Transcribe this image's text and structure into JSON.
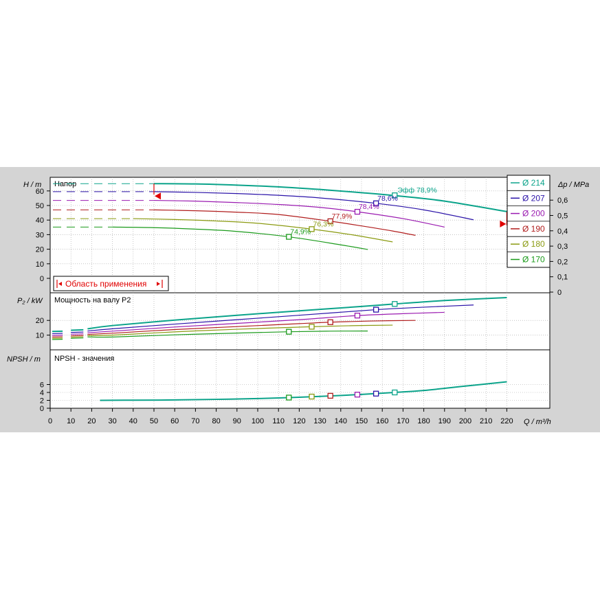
{
  "colors": {
    "background": "#d4d4d4",
    "plot": "#ffffff",
    "grid": "#a0a0a0",
    "marker_red": "#e00000"
  },
  "legend": {
    "items": [
      {
        "label": "Ø 214",
        "color": "#0aa38a"
      },
      {
        "label": "Ø 207",
        "color": "#2a12a8"
      },
      {
        "label": "Ø 200",
        "color": "#9a1ab0"
      },
      {
        "label": "Ø 190",
        "color": "#b01c1c"
      },
      {
        "label": "Ø 180",
        "color": "#8a9a10"
      },
      {
        "label": "Ø 170",
        "color": "#1a9a1a"
      }
    ]
  },
  "chart_data": {
    "type": "line",
    "x": {
      "label": "Q / m³/h",
      "range": [
        0,
        225
      ],
      "ticks": [
        0,
        10,
        20,
        30,
        40,
        50,
        60,
        70,
        80,
        90,
        100,
        110,
        120,
        130,
        140,
        150,
        160,
        170,
        180,
        190,
        200,
        210,
        220
      ]
    },
    "head": {
      "title": "Напор",
      "ylabel": "H / m",
      "range": [
        0,
        70
      ],
      "ticks": [
        0,
        10,
        20,
        30,
        40,
        50,
        60
      ],
      "right_axis": {
        "label": "Δp / MPa",
        "ticks": [
          "0",
          "0,1",
          "0,2",
          "0,3",
          "0,4",
          "0,5",
          "0,6"
        ]
      },
      "application_area_label": "Область применения",
      "application_area_range": [
        50,
        220
      ],
      "efficiency_prefix": "Эфф",
      "series": [
        {
          "q": [
            50,
            70,
            90,
            110,
            130,
            150,
            166,
            190,
            220
          ],
          "h": [
            65,
            64.8,
            64,
            62.8,
            61,
            58.8,
            56.8,
            53,
            45.8
          ],
          "bep": [
            166,
            57
          ],
          "eff_label": "78,9%",
          "dash": [
            0,
            50
          ]
        },
        {
          "q": [
            50,
            70,
            90,
            110,
            130,
            157,
            180,
            204
          ],
          "h": [
            59.5,
            59,
            58.2,
            57,
            55.2,
            51.5,
            47,
            40.2
          ],
          "bep": [
            157,
            51.5
          ],
          "eff_label": "78,6%",
          "dash": [
            0,
            50
          ]
        },
        {
          "q": [
            50,
            70,
            90,
            110,
            130,
            148,
            170,
            190
          ],
          "h": [
            53.5,
            53,
            52,
            50.7,
            48.7,
            45.7,
            41,
            35.2
          ],
          "bep": [
            148,
            45.7
          ],
          "eff_label": "78,4%",
          "dash": [
            0,
            50
          ]
        },
        {
          "q": [
            50,
            70,
            90,
            110,
            135,
            150,
            165,
            176
          ],
          "h": [
            47,
            46.4,
            45.4,
            43.8,
            39.2,
            36,
            32.5,
            29.5
          ],
          "bep": [
            135,
            39.2
          ],
          "eff_label": "77,9%",
          "dash": [
            0,
            50
          ]
        },
        {
          "q": [
            40,
            60,
            80,
            100,
            126,
            145,
            165
          ],
          "h": [
            41,
            40.4,
            39.4,
            37.8,
            33.8,
            30,
            25
          ],
          "bep": [
            126,
            33.8
          ],
          "eff_label": "76,3%",
          "dash": [
            0,
            40
          ]
        },
        {
          "q": [
            30,
            50,
            70,
            90,
            115,
            140,
            153
          ],
          "h": [
            35.2,
            34.8,
            33.8,
            32.2,
            28.5,
            23,
            19.8
          ],
          "bep": [
            115,
            28.5
          ],
          "eff_label": "74,9%",
          "dash": [
            0,
            30
          ]
        }
      ]
    },
    "power": {
      "title": "Мощность на валу P2",
      "ylabel": "P₂ / kW",
      "range": [
        0,
        38
      ],
      "ticks": [
        10,
        20
      ],
      "series": [
        {
          "q": [
            0,
            30,
            60,
            90,
            120,
            150,
            166,
            190,
            220
          ],
          "p": [
            12.5,
            16.5,
            20.2,
            23.5,
            26.5,
            29.5,
            31.2,
            33.5,
            35.5
          ],
          "bep": [
            166,
            31.2
          ]
        },
        {
          "q": [
            0,
            30,
            60,
            90,
            120,
            157,
            180,
            204
          ],
          "p": [
            11,
            14.3,
            17.5,
            20.5,
            23.5,
            27.3,
            29,
            30.5
          ],
          "bep": [
            157,
            27.3
          ]
        },
        {
          "q": [
            0,
            30,
            60,
            90,
            120,
            148,
            170,
            190
          ],
          "p": [
            9.8,
            12.7,
            15.5,
            18,
            20.5,
            23.3,
            24.6,
            25.5
          ],
          "bep": [
            148,
            23.3
          ]
        },
        {
          "q": [
            0,
            30,
            60,
            90,
            120,
            135,
            155,
            176
          ],
          "p": [
            8.7,
            11.3,
            13.8,
            15.8,
            17.8,
            18.8,
            19.6,
            20
          ],
          "bep": [
            135,
            18.8
          ]
        },
        {
          "q": [
            0,
            30,
            60,
            90,
            126,
            145,
            165
          ],
          "p": [
            7.8,
            10,
            12.2,
            14,
            15.7,
            16.4,
            16.8
          ],
          "bep": [
            126,
            15.7
          ]
        },
        {
          "q": [
            0,
            30,
            60,
            90,
            115,
            135,
            153
          ],
          "p": [
            7,
            8.7,
            10.2,
            11.4,
            12.3,
            12.7,
            12.8
          ],
          "bep": [
            115,
            12.3
          ]
        }
      ]
    },
    "npsh": {
      "title": "NPSH - значения",
      "ylabel": "NPSH / m",
      "range": [
        0,
        7.5
      ],
      "ticks": [
        0,
        2,
        4,
        6
      ],
      "curve": {
        "q": [
          24,
          40,
          60,
          80,
          100,
          115,
          130,
          150,
          166,
          180,
          200,
          220
        ],
        "v": [
          2,
          2.05,
          2.1,
          2.25,
          2.45,
          2.7,
          3,
          3.5,
          4,
          4.5,
          5.6,
          6.7
        ]
      },
      "points": [
        [
          115,
          2.7
        ],
        [
          126,
          2.95
        ],
        [
          135,
          3.15
        ],
        [
          148,
          3.45
        ],
        [
          157,
          3.7
        ],
        [
          166,
          4
        ]
      ]
    }
  }
}
